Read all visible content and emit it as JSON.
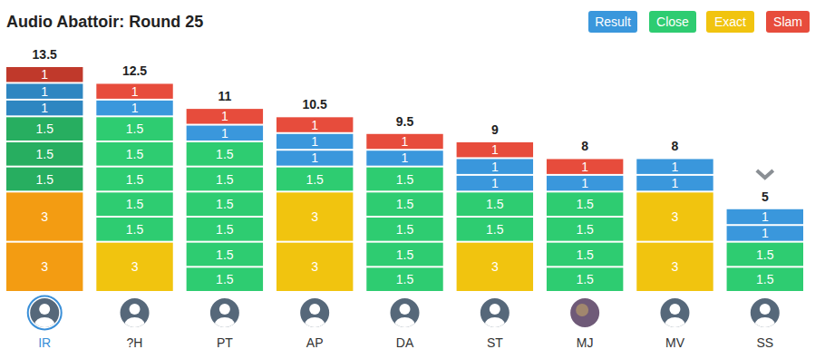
{
  "chart_data": {
    "type": "bar",
    "title": "Audio Abattoir: Round 25",
    "stacked": true,
    "data_labels": true,
    "tick_labels": "x",
    "ylim": [
      0,
      13.5
    ],
    "series": [
      {
        "name": "Result",
        "color": "#3a97dc"
      },
      {
        "name": "Close",
        "color": "#2ecc71"
      },
      {
        "name": "Exact",
        "color": "#f1c40f"
      },
      {
        "name": "Slam",
        "color": "#e74c3c"
      }
    ],
    "categories": [
      "IR",
      "?H",
      "PT",
      "AP",
      "DA",
      "ST",
      "MJ",
      "MV",
      "SS"
    ],
    "totals": [
      13.5,
      12.5,
      11,
      10.5,
      9.5,
      9,
      8,
      8,
      5
    ],
    "segments": [
      [
        {
          "series": "Exact",
          "value": 3,
          "color": "#f39c12"
        },
        {
          "series": "Exact",
          "value": 3,
          "color": "#f39c12"
        },
        {
          "series": "Close",
          "value": 1.5,
          "color": "#27ae60"
        },
        {
          "series": "Close",
          "value": 1.5,
          "color": "#27ae60"
        },
        {
          "series": "Close",
          "value": 1.5,
          "color": "#27ae60"
        },
        {
          "series": "Result",
          "value": 1,
          "color": "#2e86c1"
        },
        {
          "series": "Result",
          "value": 1,
          "color": "#2e86c1"
        },
        {
          "series": "Slam",
          "value": 1,
          "color": "#c0392b"
        }
      ],
      [
        {
          "series": "Exact",
          "value": 3
        },
        {
          "series": "Close",
          "value": 1.5
        },
        {
          "series": "Close",
          "value": 1.5
        },
        {
          "series": "Close",
          "value": 1.5
        },
        {
          "series": "Close",
          "value": 1.5
        },
        {
          "series": "Close",
          "value": 1.5
        },
        {
          "series": "Result",
          "value": 1
        },
        {
          "series": "Slam",
          "value": 1
        }
      ],
      [
        {
          "series": "Close",
          "value": 1.5
        },
        {
          "series": "Close",
          "value": 1.5
        },
        {
          "series": "Close",
          "value": 1.5
        },
        {
          "series": "Close",
          "value": 1.5
        },
        {
          "series": "Close",
          "value": 1.5
        },
        {
          "series": "Close",
          "value": 1.5
        },
        {
          "series": "Result",
          "value": 1
        },
        {
          "series": "Slam",
          "value": 1
        }
      ],
      [
        {
          "series": "Exact",
          "value": 3
        },
        {
          "series": "Exact",
          "value": 3
        },
        {
          "series": "Close",
          "value": 1.5
        },
        {
          "series": "Result",
          "value": 1
        },
        {
          "series": "Result",
          "value": 1
        },
        {
          "series": "Slam",
          "value": 1
        }
      ],
      [
        {
          "series": "Close",
          "value": 1.5
        },
        {
          "series": "Close",
          "value": 1.5
        },
        {
          "series": "Close",
          "value": 1.5
        },
        {
          "series": "Close",
          "value": 1.5
        },
        {
          "series": "Close",
          "value": 1.5
        },
        {
          "series": "Result",
          "value": 1
        },
        {
          "series": "Slam",
          "value": 1
        }
      ],
      [
        {
          "series": "Exact",
          "value": 3
        },
        {
          "series": "Close",
          "value": 1.5
        },
        {
          "series": "Close",
          "value": 1.5
        },
        {
          "series": "Result",
          "value": 1
        },
        {
          "series": "Result",
          "value": 1
        },
        {
          "series": "Slam",
          "value": 1
        }
      ],
      [
        {
          "series": "Close",
          "value": 1.5
        },
        {
          "series": "Close",
          "value": 1.5
        },
        {
          "series": "Close",
          "value": 1.5
        },
        {
          "series": "Close",
          "value": 1.5
        },
        {
          "series": "Result",
          "value": 1
        },
        {
          "series": "Slam",
          "value": 1
        }
      ],
      [
        {
          "series": "Exact",
          "value": 3
        },
        {
          "series": "Exact",
          "value": 3
        },
        {
          "series": "Result",
          "value": 1
        },
        {
          "series": "Result",
          "value": 1
        }
      ],
      [
        {
          "series": "Close",
          "value": 1.5
        },
        {
          "series": "Close",
          "value": 1.5
        },
        {
          "series": "Result",
          "value": 1
        },
        {
          "series": "Result",
          "value": 1
        }
      ]
    ]
  }
}
